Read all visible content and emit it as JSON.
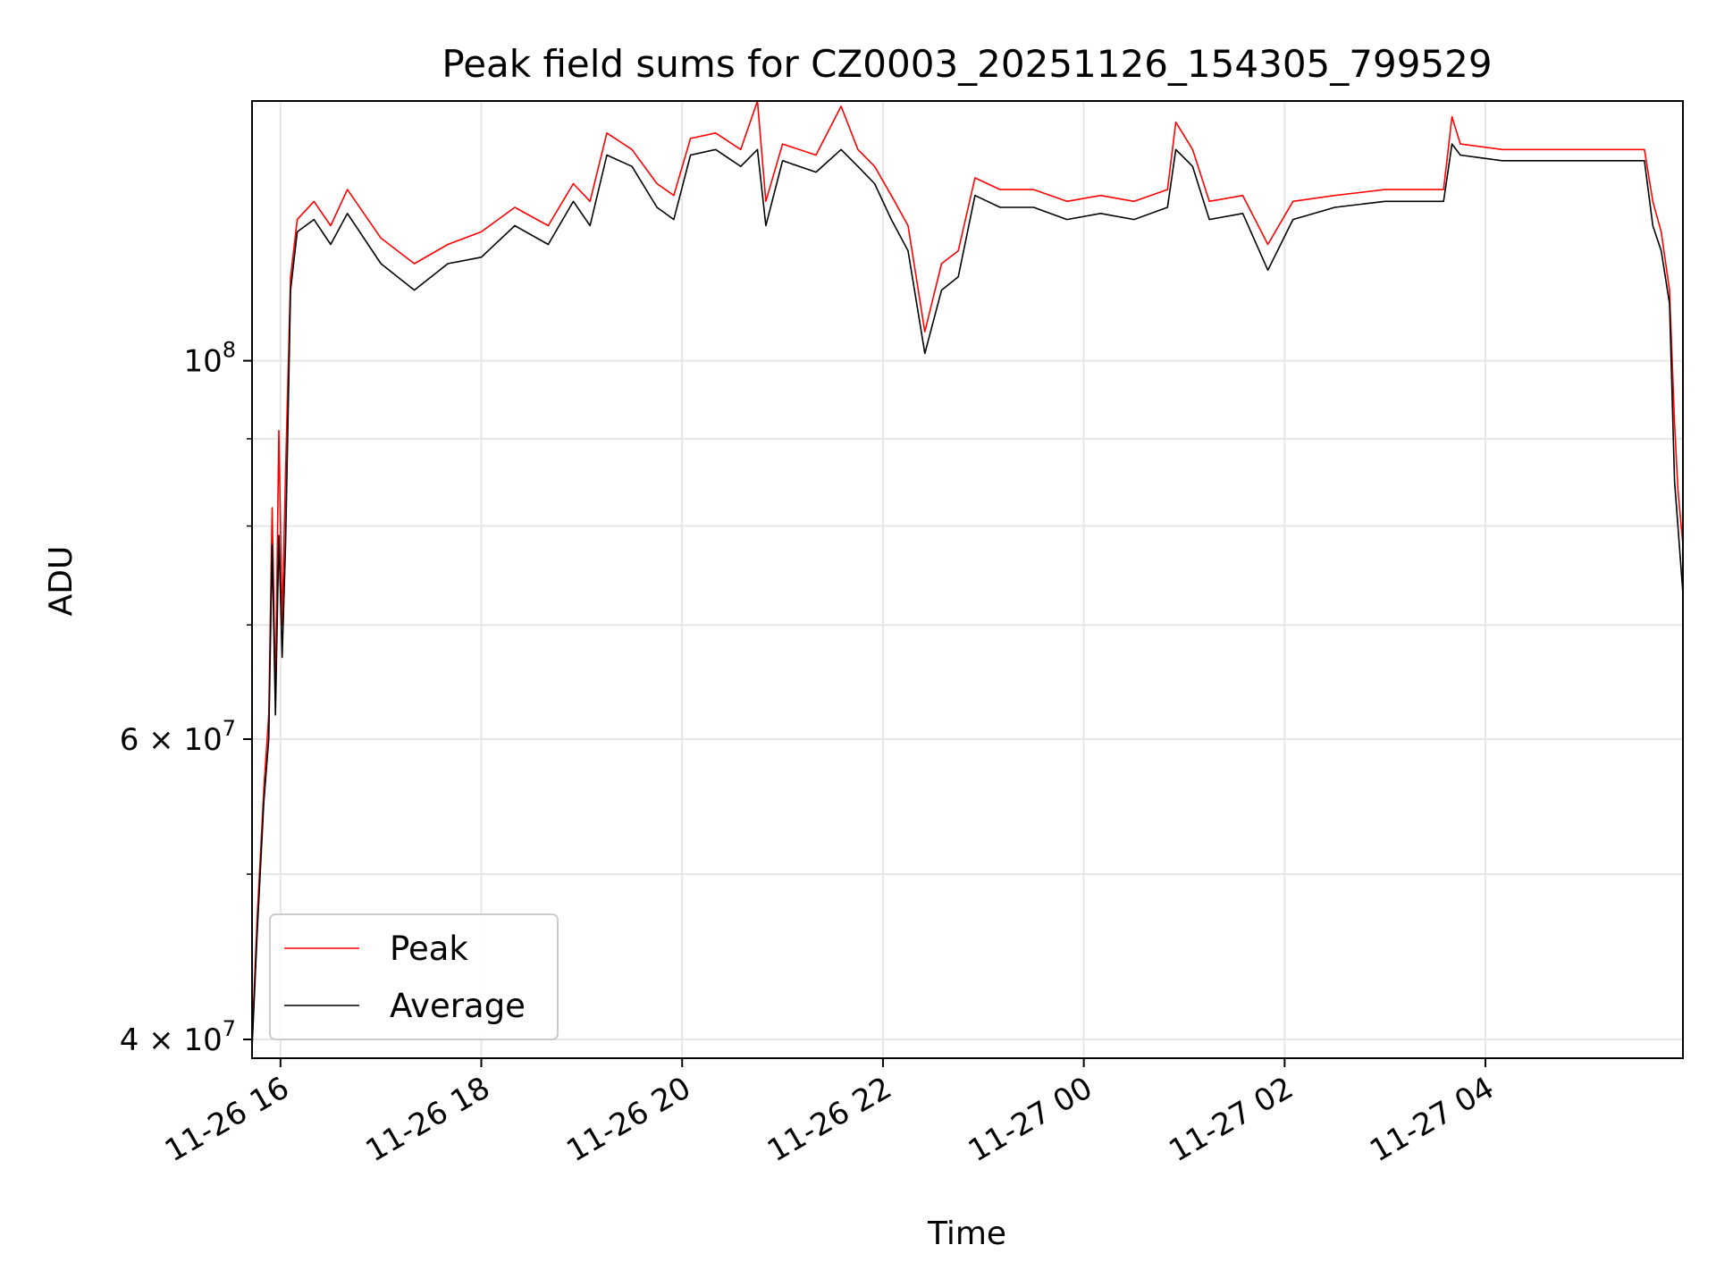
{
  "chart_data": {
    "type": "line",
    "title": "Peak field sums for CZ0003_20251126_154305_799529",
    "xlabel": "Time",
    "ylabel": "ADU",
    "x_axis_type": "time",
    "x_range": [
      "2025-11-26 15:43",
      "2025-11-27 05:58"
    ],
    "x_ticks": [
      {
        "value": "2025-11-26 16:00",
        "label": "11-26 16"
      },
      {
        "value": "2025-11-26 18:00",
        "label": "11-26 18"
      },
      {
        "value": "2025-11-26 20:00",
        "label": "11-26 20"
      },
      {
        "value": "2025-11-26 22:00",
        "label": "11-26 22"
      },
      {
        "value": "2025-11-27 00:00",
        "label": "11-27 00"
      },
      {
        "value": "2025-11-27 02:00",
        "label": "11-27 02"
      },
      {
        "value": "2025-11-27 04:00",
        "label": "11-27 04"
      }
    ],
    "y_scale": "log",
    "ylim": [
      39000000,
      142000000
    ],
    "y_ticks": [
      {
        "value": 40000000,
        "base": "4 × 10",
        "exp": "7"
      },
      {
        "value": 60000000,
        "base": "6 × 10",
        "exp": "7"
      },
      {
        "value": 100000000,
        "base": "10",
        "exp": "8"
      }
    ],
    "y_minor_ticks": [
      50000000,
      70000000,
      80000000,
      90000000
    ],
    "grid": true,
    "legend_position": "lower-left",
    "series": [
      {
        "name": "Peak",
        "color": "#ff0000",
        "points": [
          [
            "2025-11-26 15:43",
            40000000
          ],
          [
            "2025-11-26 15:46",
            47000000
          ],
          [
            "2025-11-26 15:50",
            56000000
          ],
          [
            "2025-11-26 15:53",
            62000000
          ],
          [
            "2025-11-26 15:55",
            82000000
          ],
          [
            "2025-11-26 15:57",
            64000000
          ],
          [
            "2025-11-26 15:59",
            91000000
          ],
          [
            "2025-11-26 16:01",
            70000000
          ],
          [
            "2025-11-26 16:03",
            86000000
          ],
          [
            "2025-11-26 16:06",
            112000000
          ],
          [
            "2025-11-26 16:10",
            121000000
          ],
          [
            "2025-11-26 16:20",
            124000000
          ],
          [
            "2025-11-26 16:30",
            120000000
          ],
          [
            "2025-11-26 16:40",
            126000000
          ],
          [
            "2025-11-26 17:00",
            118000000
          ],
          [
            "2025-11-26 17:20",
            114000000
          ],
          [
            "2025-11-26 17:40",
            117000000
          ],
          [
            "2025-11-26 18:00",
            119000000
          ],
          [
            "2025-11-26 18:20",
            123000000
          ],
          [
            "2025-11-26 18:40",
            120000000
          ],
          [
            "2025-11-26 18:55",
            127000000
          ],
          [
            "2025-11-26 19:05",
            124000000
          ],
          [
            "2025-11-26 19:15",
            136000000
          ],
          [
            "2025-11-26 19:30",
            133000000
          ],
          [
            "2025-11-26 19:45",
            127000000
          ],
          [
            "2025-11-26 19:55",
            125000000
          ],
          [
            "2025-11-26 20:05",
            135000000
          ],
          [
            "2025-11-26 20:20",
            136000000
          ],
          [
            "2025-11-26 20:35",
            133000000
          ],
          [
            "2025-11-26 20:45",
            142000000
          ],
          [
            "2025-11-26 20:50",
            124000000
          ],
          [
            "2025-11-26 21:00",
            134000000
          ],
          [
            "2025-11-26 21:20",
            132000000
          ],
          [
            "2025-11-26 21:35",
            141000000
          ],
          [
            "2025-11-26 21:45",
            133000000
          ],
          [
            "2025-11-26 21:55",
            130000000
          ],
          [
            "2025-11-26 22:05",
            125000000
          ],
          [
            "2025-11-26 22:15",
            120000000
          ],
          [
            "2025-11-26 22:25",
            104000000
          ],
          [
            "2025-11-26 22:35",
            114000000
          ],
          [
            "2025-11-26 22:45",
            116000000
          ],
          [
            "2025-11-26 22:55",
            128000000
          ],
          [
            "2025-11-26 23:10",
            126000000
          ],
          [
            "2025-11-26 23:30",
            126000000
          ],
          [
            "2025-11-26 23:50",
            124000000
          ],
          [
            "2025-11-27 00:10",
            125000000
          ],
          [
            "2025-11-27 00:30",
            124000000
          ],
          [
            "2025-11-27 00:50",
            126000000
          ],
          [
            "2025-11-27 00:55",
            138000000
          ],
          [
            "2025-11-27 01:05",
            133000000
          ],
          [
            "2025-11-27 01:15",
            124000000
          ],
          [
            "2025-11-27 01:35",
            125000000
          ],
          [
            "2025-11-27 01:50",
            117000000
          ],
          [
            "2025-11-27 02:05",
            124000000
          ],
          [
            "2025-11-27 02:30",
            125000000
          ],
          [
            "2025-11-27 03:00",
            126000000
          ],
          [
            "2025-11-27 03:35",
            126000000
          ],
          [
            "2025-11-27 03:40",
            139000000
          ],
          [
            "2025-11-27 03:45",
            134000000
          ],
          [
            "2025-11-27 04:10",
            133000000
          ],
          [
            "2025-11-27 04:40",
            133000000
          ],
          [
            "2025-11-27 05:15",
            133000000
          ],
          [
            "2025-11-27 05:35",
            133000000
          ],
          [
            "2025-11-27 05:40",
            124000000
          ],
          [
            "2025-11-27 05:45",
            119000000
          ],
          [
            "2025-11-27 05:50",
            110000000
          ],
          [
            "2025-11-27 05:53",
            92000000
          ],
          [
            "2025-11-27 05:55",
            84000000
          ],
          [
            "2025-11-27 05:58",
            78000000
          ]
        ]
      },
      {
        "name": "Average",
        "color": "#000000",
        "points": [
          [
            "2025-11-26 15:43",
            39500000
          ],
          [
            "2025-11-26 15:46",
            46000000
          ],
          [
            "2025-11-26 15:50",
            55000000
          ],
          [
            "2025-11-26 15:53",
            60000000
          ],
          [
            "2025-11-26 15:55",
            78000000
          ],
          [
            "2025-11-26 15:57",
            62000000
          ],
          [
            "2025-11-26 15:59",
            79000000
          ],
          [
            "2025-11-26 16:01",
            67000000
          ],
          [
            "2025-11-26 16:03",
            78000000
          ],
          [
            "2025-11-26 16:06",
            110000000
          ],
          [
            "2025-11-26 16:10",
            119000000
          ],
          [
            "2025-11-26 16:20",
            121000000
          ],
          [
            "2025-11-26 16:30",
            117000000
          ],
          [
            "2025-11-26 16:40",
            122000000
          ],
          [
            "2025-11-26 17:00",
            114000000
          ],
          [
            "2025-11-26 17:20",
            110000000
          ],
          [
            "2025-11-26 17:40",
            114000000
          ],
          [
            "2025-11-26 18:00",
            115000000
          ],
          [
            "2025-11-26 18:20",
            120000000
          ],
          [
            "2025-11-26 18:40",
            117000000
          ],
          [
            "2025-11-26 18:55",
            124000000
          ],
          [
            "2025-11-26 19:05",
            120000000
          ],
          [
            "2025-11-26 19:15",
            132000000
          ],
          [
            "2025-11-26 19:30",
            130000000
          ],
          [
            "2025-11-26 19:45",
            123000000
          ],
          [
            "2025-11-26 19:55",
            121000000
          ],
          [
            "2025-11-26 20:05",
            132000000
          ],
          [
            "2025-11-26 20:20",
            133000000
          ],
          [
            "2025-11-26 20:35",
            130000000
          ],
          [
            "2025-11-26 20:45",
            133000000
          ],
          [
            "2025-11-26 20:50",
            120000000
          ],
          [
            "2025-11-26 21:00",
            131000000
          ],
          [
            "2025-11-26 21:20",
            129000000
          ],
          [
            "2025-11-26 21:35",
            133000000
          ],
          [
            "2025-11-26 21:45",
            130000000
          ],
          [
            "2025-11-26 21:55",
            127000000
          ],
          [
            "2025-11-26 22:05",
            121000000
          ],
          [
            "2025-11-26 22:15",
            116000000
          ],
          [
            "2025-11-26 22:25",
            101000000
          ],
          [
            "2025-11-26 22:35",
            110000000
          ],
          [
            "2025-11-26 22:45",
            112000000
          ],
          [
            "2025-11-26 22:55",
            125000000
          ],
          [
            "2025-11-26 23:10",
            123000000
          ],
          [
            "2025-11-26 23:30",
            123000000
          ],
          [
            "2025-11-26 23:50",
            121000000
          ],
          [
            "2025-11-27 00:10",
            122000000
          ],
          [
            "2025-11-27 00:30",
            121000000
          ],
          [
            "2025-11-27 00:50",
            123000000
          ],
          [
            "2025-11-27 00:55",
            133000000
          ],
          [
            "2025-11-27 01:05",
            130000000
          ],
          [
            "2025-11-27 01:15",
            121000000
          ],
          [
            "2025-11-27 01:35",
            122000000
          ],
          [
            "2025-11-27 01:50",
            113000000
          ],
          [
            "2025-11-27 02:05",
            121000000
          ],
          [
            "2025-11-27 02:30",
            123000000
          ],
          [
            "2025-11-27 03:00",
            124000000
          ],
          [
            "2025-11-27 03:35",
            124000000
          ],
          [
            "2025-11-27 03:40",
            134000000
          ],
          [
            "2025-11-27 03:45",
            132000000
          ],
          [
            "2025-11-27 04:10",
            131000000
          ],
          [
            "2025-11-27 04:40",
            131000000
          ],
          [
            "2025-11-27 05:15",
            131000000
          ],
          [
            "2025-11-27 05:35",
            131000000
          ],
          [
            "2025-11-27 05:40",
            120000000
          ],
          [
            "2025-11-27 05:45",
            116000000
          ],
          [
            "2025-11-27 05:50",
            108000000
          ],
          [
            "2025-11-27 05:53",
            85000000
          ],
          [
            "2025-11-27 05:55",
            80000000
          ],
          [
            "2025-11-27 05:58",
            73000000
          ]
        ]
      }
    ]
  }
}
